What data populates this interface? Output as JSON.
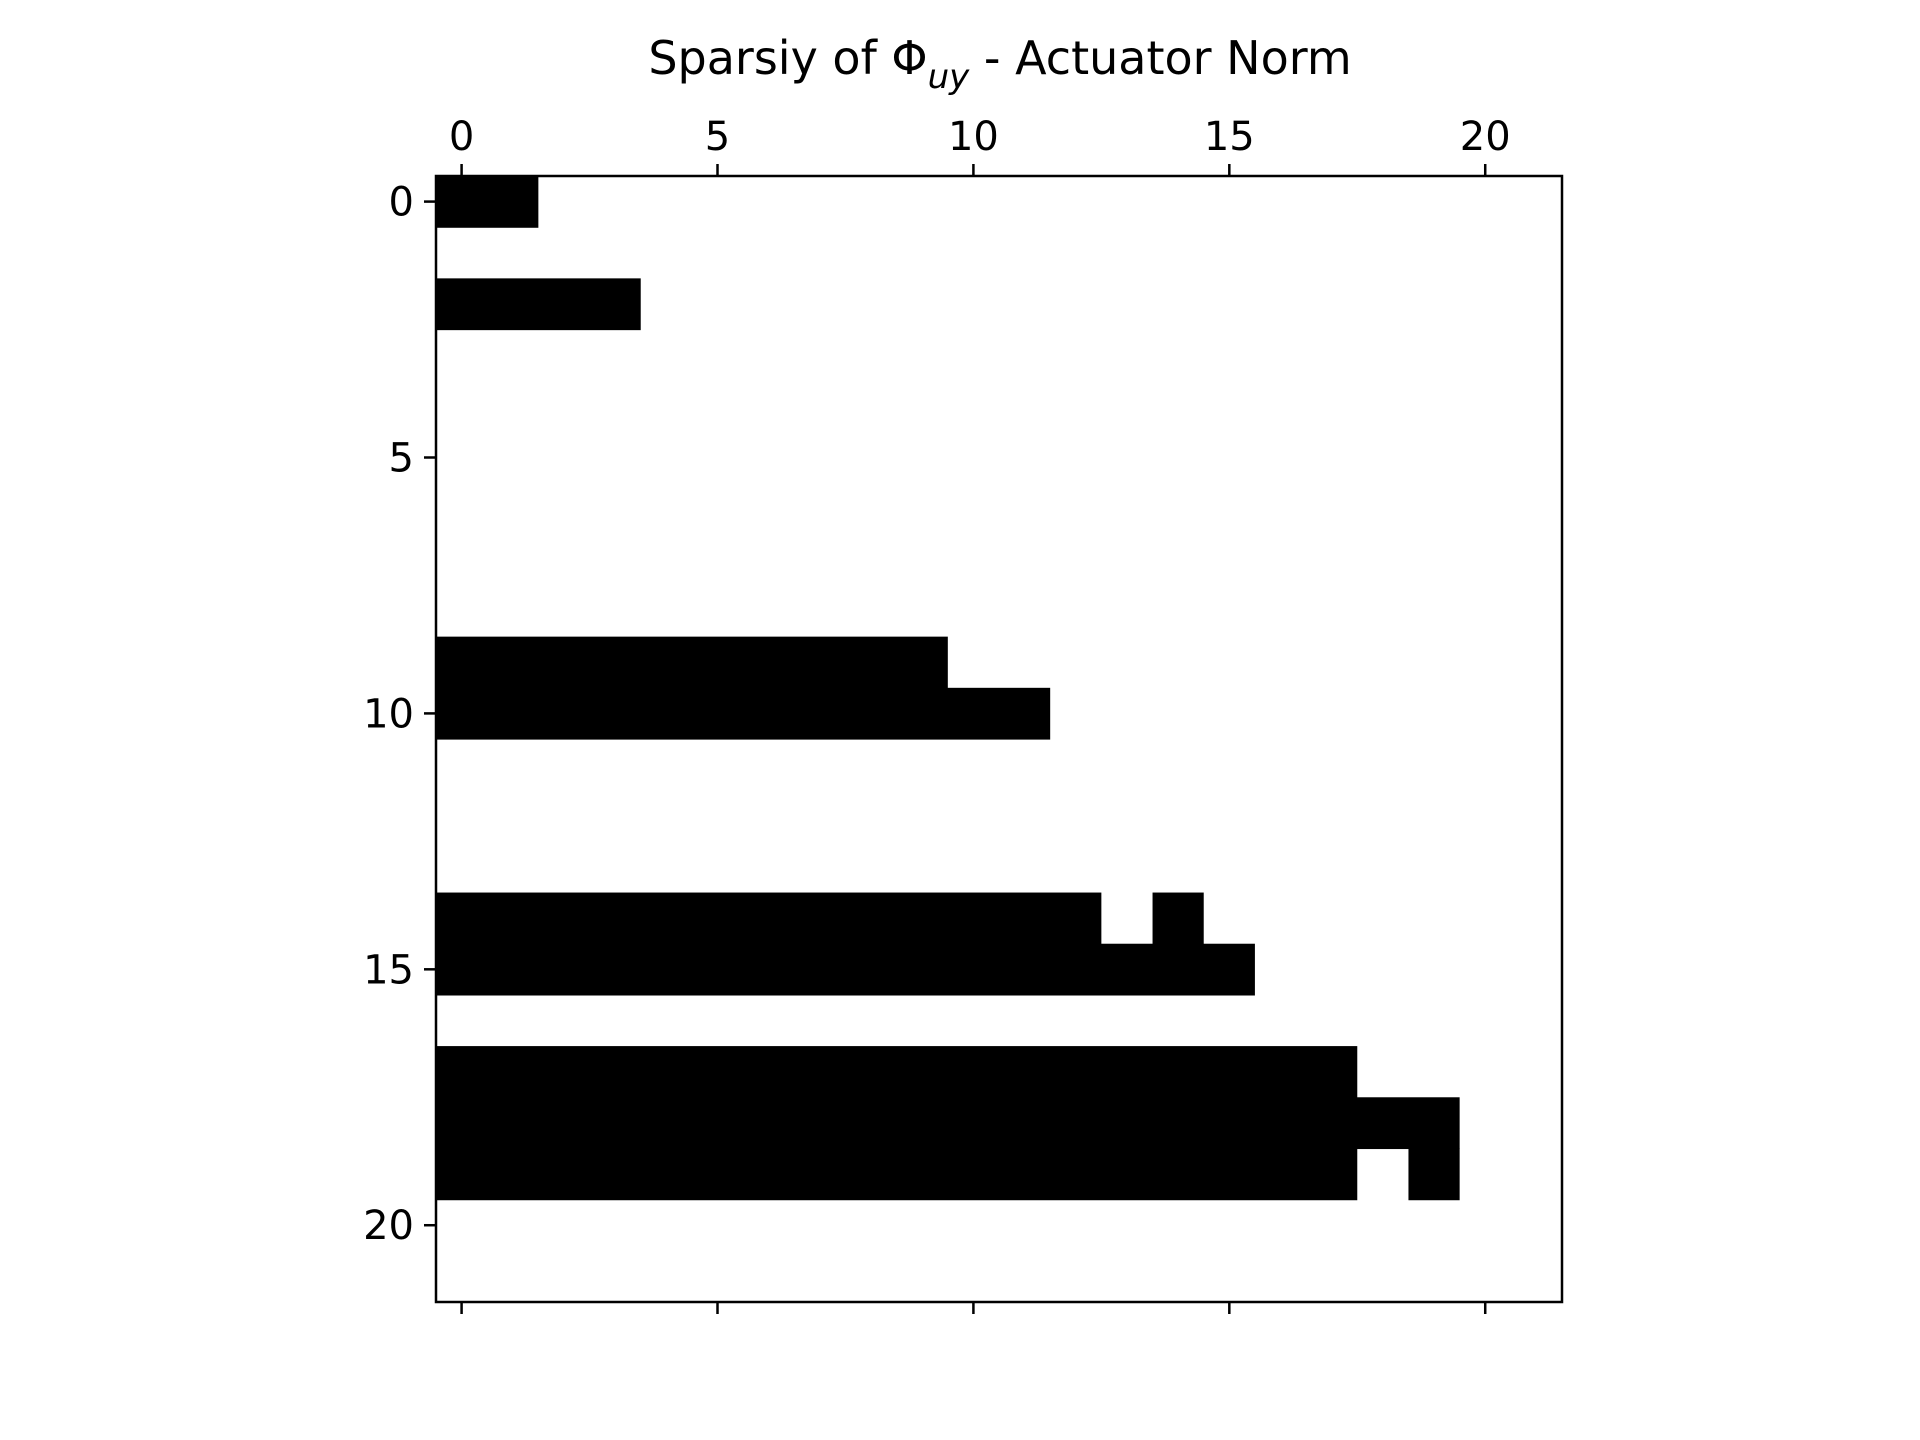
{
  "chart_data": {
    "type": "heatmap",
    "title_prefix": "Sparsiy of Φ",
    "title_subscript": "uy",
    "title_suffix": " - Actuator Norm",
    "title": "Sparsiy of Φuy - Actuator Norm",
    "xlabel": "",
    "ylabel": "",
    "xlim": [
      -0.5,
      21.5
    ],
    "ylim": [
      21.5,
      -0.5
    ],
    "xticks": [
      0,
      5,
      10,
      15,
      20
    ],
    "yticks": [
      0,
      5,
      10,
      15,
      20
    ],
    "x_axis_position": "top-and-bottom",
    "tick_labels_position": "top",
    "grid": false,
    "colors": {
      "nonzero": "#000000",
      "zero": "#ffffff",
      "frame": "#000000"
    },
    "nonzero_runs": [
      {
        "row": 0,
        "col_start": 0,
        "col_end": 1
      },
      {
        "row": 2,
        "col_start": 0,
        "col_end": 3
      },
      {
        "row": 9,
        "col_start": 0,
        "col_end": 9
      },
      {
        "row": 10,
        "col_start": 0,
        "col_end": 11
      },
      {
        "row": 14,
        "col_start": 0,
        "col_end": 12
      },
      {
        "row": 14,
        "col_start": 14,
        "col_end": 14
      },
      {
        "row": 15,
        "col_start": 0,
        "col_end": 15
      },
      {
        "row": 17,
        "col_start": 0,
        "col_end": 17
      },
      {
        "row": 18,
        "col_start": 0,
        "col_end": 19
      },
      {
        "row": 19,
        "col_start": 0,
        "col_end": 17
      },
      {
        "row": 19,
        "col_start": 19,
        "col_end": 19
      }
    ]
  }
}
